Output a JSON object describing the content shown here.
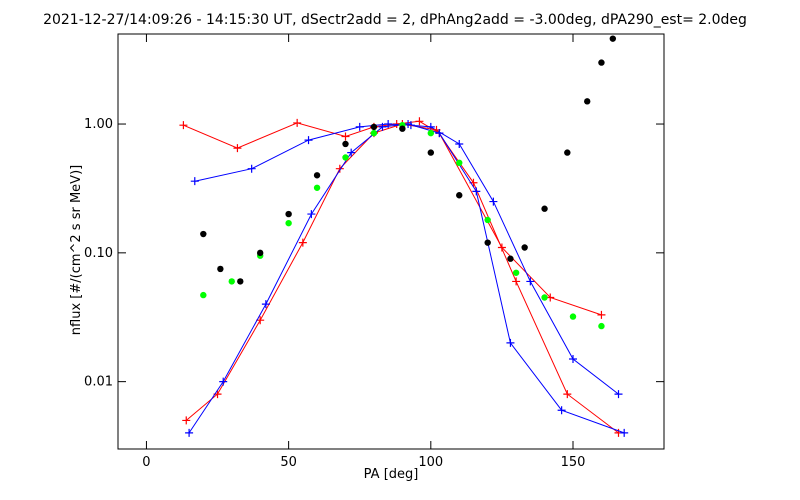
{
  "chart_data": {
    "type": "line",
    "title": "2021-12-27/14:09:26 - 14:15:30 UT, dSectr2add = 2, dPhAng2add = -3.00deg, dPA290_est=   2.0deg",
    "xlabel": "PA [deg]",
    "ylabel": "nflux [#/(cm^2 s sr MeV)]",
    "xlim": [
      -10,
      182
    ],
    "ylim": [
      0.003,
      5.0
    ],
    "yscale": "log",
    "x_ticks": [
      0,
      50,
      100,
      150
    ],
    "x_tick_labels": [
      "0",
      "50",
      "100",
      "150"
    ],
    "y_ticks": [
      0.01,
      0.1,
      1.0
    ],
    "y_tick_labels": [
      "0.01",
      "0.10",
      "1.00"
    ],
    "grid": false,
    "colors": {
      "red": "#ff0000",
      "blue": "#0000ff",
      "green": "#00ff00",
      "black": "#000000"
    },
    "series": [
      {
        "color": "#ff0000",
        "marker": "plus",
        "x": [
          13,
          32,
          53,
          70,
          80,
          88,
          96,
          103,
          125,
          142,
          160
        ],
        "y": [
          0.98,
          0.65,
          1.02,
          0.8,
          0.95,
          1.0,
          1.05,
          0.85,
          0.11,
          0.045,
          0.033
        ]
      },
      {
        "color": "#0000ff",
        "marker": "plus",
        "x": [
          17,
          37,
          57,
          75,
          85,
          93,
          100,
          110,
          122,
          135,
          150,
          166
        ],
        "y": [
          0.36,
          0.45,
          0.75,
          0.95,
          1.0,
          0.98,
          0.95,
          0.7,
          0.25,
          0.06,
          0.015,
          0.008
        ]
      },
      {
        "color": "#ff0000",
        "marker": "plus",
        "x": [
          14,
          25,
          40,
          55,
          68,
          80,
          90,
          102,
          115,
          130,
          148,
          166
        ],
        "y": [
          0.005,
          0.008,
          0.03,
          0.12,
          0.45,
          0.85,
          1.0,
          0.9,
          0.35,
          0.06,
          0.008,
          0.004
        ]
      },
      {
        "color": "#0000ff",
        "marker": "plus",
        "x": [
          15,
          27,
          42,
          58,
          72,
          83,
          92,
          103,
          116,
          128,
          146,
          168
        ],
        "y": [
          0.004,
          0.01,
          0.04,
          0.2,
          0.6,
          0.95,
          1.0,
          0.85,
          0.3,
          0.02,
          0.006,
          0.004
        ]
      },
      {
        "color": "#00ff00",
        "marker": "dot",
        "name": "",
        "x": [
          20,
          30,
          40,
          50,
          60,
          70,
          80,
          90,
          100,
          110,
          120,
          130,
          140,
          150,
          160
        ],
        "y": [
          0.047,
          0.06,
          0.095,
          0.17,
          0.32,
          0.55,
          0.85,
          0.98,
          0.85,
          0.5,
          0.18,
          0.07,
          0.045,
          0.032,
          0.027
        ]
      },
      {
        "color": "#000000",
        "marker": "dot",
        "name": "",
        "x": [
          20,
          26,
          33,
          40,
          50,
          60,
          70,
          80,
          90,
          100,
          110,
          120,
          128,
          133,
          140,
          148,
          155,
          160,
          164
        ],
        "y": [
          0.14,
          0.075,
          0.06,
          0.1,
          0.2,
          0.4,
          0.7,
          0.95,
          0.92,
          0.6,
          0.28,
          0.12,
          0.09,
          0.11,
          0.22,
          0.6,
          1.5,
          3.0,
          4.6
        ]
      }
    ]
  }
}
